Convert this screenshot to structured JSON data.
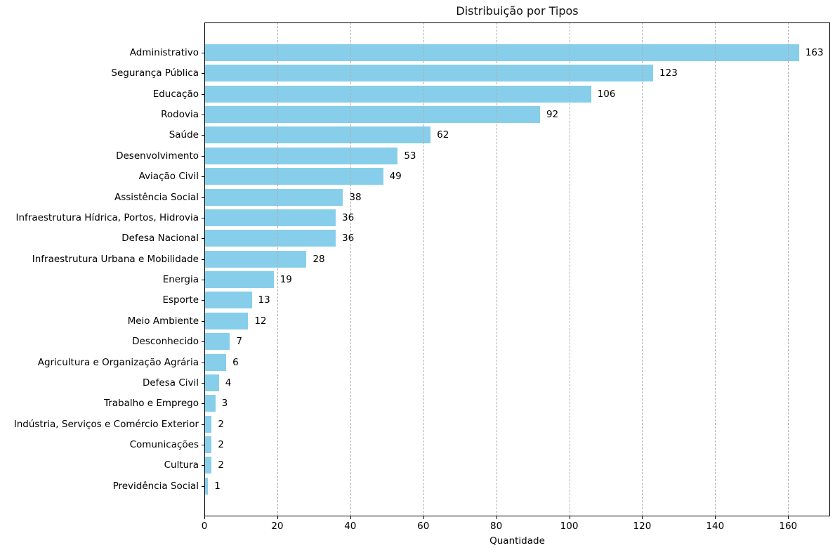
{
  "chart_data": {
    "type": "bar",
    "orientation": "horizontal",
    "title": "Distribuição por Tipos",
    "xlabel": "Quantidade",
    "ylabel": "",
    "categories": [
      "Administrativo",
      "Segurança Pública",
      "Educação",
      "Rodovia",
      "Saúde",
      "Desenvolvimento",
      "Aviação Civil",
      "Assistência Social",
      "Infraestrutura Hídrica, Portos, Hidrovia",
      "Defesa Nacional",
      "Infraestrutura Urbana e Mobilidade",
      "Energia",
      "Esporte",
      "Meio Ambiente",
      "Desconhecido",
      "Agricultura e Organização Agrária",
      "Defesa Civil",
      "Trabalho e Emprego",
      "Indústria, Serviços e Comércio Exterior",
      "Comunicações",
      "Cultura",
      "Previdência Social"
    ],
    "values": [
      163,
      123,
      106,
      92,
      62,
      53,
      49,
      38,
      36,
      36,
      28,
      19,
      13,
      12,
      7,
      6,
      4,
      3,
      2,
      2,
      2,
      1
    ],
    "value_labels_shown": true,
    "xticks": [
      0,
      20,
      40,
      60,
      80,
      100,
      120,
      140,
      160
    ],
    "xlim": [
      0,
      171.5
    ],
    "grid": {
      "axis": "x",
      "style": "dashed",
      "color": "#b0b0b0"
    },
    "bar_color": "#87CEEB",
    "text_color": "#000000",
    "legend_position": "none"
  }
}
